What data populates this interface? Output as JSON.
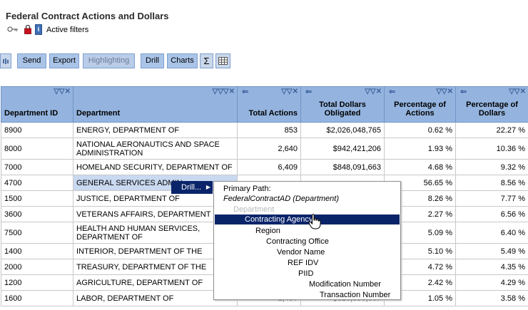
{
  "page": {
    "title": "Federal Contract Actions and Dollars",
    "active_filters": "Active filters",
    "info_glyph": "i"
  },
  "toolbar": {
    "send": "Send",
    "export": "Export",
    "highlighting": "Highlighting",
    "drill": "Drill",
    "charts": "Charts",
    "sigma": "Σ"
  },
  "icons": {
    "key": "key-icon",
    "lock": "lock-icon",
    "info": "info-icon",
    "grid": "grid-icon",
    "sort_controls": "sort-controls-icon",
    "left_arrow": "left-arrow-icon",
    "cursor": "hand-cursor-icon"
  },
  "table": {
    "columns": [
      {
        "label": "Department ID",
        "ctrl": "▽▽✕",
        "arrow": ""
      },
      {
        "label": "Department",
        "ctrl": "▽▽▽✕",
        "arrow": ""
      },
      {
        "label": "Total Actions",
        "ctrl": "▽▽✕",
        "arrow": "⇐"
      },
      {
        "label": "Total Dollars Obligated",
        "ctrl": "▽▽✕",
        "arrow": "⇐"
      },
      {
        "label": "Percentage of Actions",
        "ctrl": "▽▽✕",
        "arrow": "⇐"
      },
      {
        "label": "Percentage of Dollars",
        "ctrl": "▽▽✕",
        "arrow": "⇐"
      }
    ],
    "rows": [
      {
        "id": "8900",
        "dept": "ENERGY, DEPARTMENT OF",
        "actions": "853",
        "dollars": "$2,026,048,765",
        "pct_actions": "0.62 %",
        "pct_dollars": "22.27 %"
      },
      {
        "id": "8000",
        "dept": "NATIONAL AERONAUTICS AND SPACE ADMINISTRATION",
        "actions": "2,640",
        "dollars": "$942,421,206",
        "pct_actions": "1.93 %",
        "pct_dollars": "10.36 %"
      },
      {
        "id": "7000",
        "dept": "HOMELAND SECURITY, DEPARTMENT OF",
        "actions": "6,409",
        "dollars": "$848,091,663",
        "pct_actions": "4.68 %",
        "pct_dollars": "9.32 %"
      },
      {
        "id": "4700",
        "dept": "GENERAL SERVICES ADMIN",
        "actions": "",
        "dollars": "",
        "pct_actions": "56.65 %",
        "pct_dollars": "8.56 %"
      },
      {
        "id": "1500",
        "dept": "JUSTICE, DEPARTMENT OF",
        "actions": "",
        "dollars": "",
        "pct_actions": "8.26 %",
        "pct_dollars": "7.77 %"
      },
      {
        "id": "3600",
        "dept": "VETERANS AFFAIRS, DEPARTMENT OF",
        "actions": "",
        "dollars": "",
        "pct_actions": "2.27 %",
        "pct_dollars": "6.56 %"
      },
      {
        "id": "7500",
        "dept": "HEALTH AND HUMAN SERVICES, DEPARTMENT OF",
        "actions": "",
        "dollars": "",
        "pct_actions": "5.09 %",
        "pct_dollars": "6.40 %"
      },
      {
        "id": "1400",
        "dept": "INTERIOR, DEPARTMENT OF THE",
        "actions": "",
        "dollars": "",
        "pct_actions": "5.10 %",
        "pct_dollars": "5.49 %"
      },
      {
        "id": "2000",
        "dept": "TREASURY, DEPARTMENT OF THE",
        "actions": "",
        "dollars": "",
        "pct_actions": "4.72 %",
        "pct_dollars": "4.35 %"
      },
      {
        "id": "1200",
        "dept": "AGRICULTURE, DEPARTMENT OF",
        "actions": "",
        "dollars": "",
        "pct_actions": "2.42 %",
        "pct_dollars": "4.29 %"
      },
      {
        "id": "1600",
        "dept": "LABOR, DEPARTMENT OF",
        "actions": "1,437",
        "dollars": "$326,096,067",
        "pct_actions": "1.05 %",
        "pct_dollars": "3.58 %"
      }
    ]
  },
  "drill_tag": {
    "label": "Drill...",
    "arrow": "▶"
  },
  "drill_menu": {
    "header": "Primary Path:",
    "path": "FederalContractAD (Department)",
    "disabled": "Department",
    "selected": "Contracting Agency",
    "items": [
      {
        "label": "Region"
      },
      {
        "label": "Contracting Office"
      },
      {
        "label": "Vendor Name"
      },
      {
        "label": "REF IDV"
      },
      {
        "label": "PIID"
      },
      {
        "label": "Modification Number"
      },
      {
        "label": "Transaction Number"
      }
    ]
  }
}
